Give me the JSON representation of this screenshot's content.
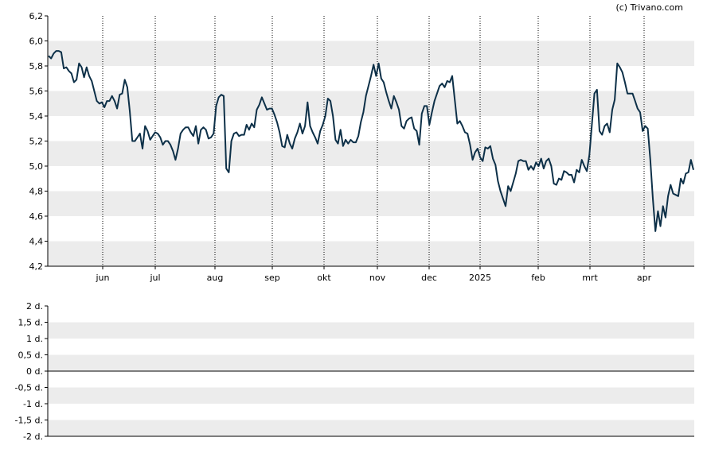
{
  "credit": "(c) Trivano.com",
  "colors": {
    "line": "#0d3048",
    "band": "#ececec",
    "axis": "#000000",
    "vgrid": "#000000"
  },
  "chart_data": [
    {
      "type": "line",
      "title": "",
      "xlabel": "",
      "ylabel": "",
      "ylim": [
        4.2,
        6.2
      ],
      "grid": "alternating horizontal bands, dotted vertical month lines",
      "x_tick_labels": [
        "jun",
        "jul",
        "aug",
        "sep",
        "okt",
        "nov",
        "dec",
        "2025",
        "feb",
        "mrt",
        "apr"
      ],
      "y_tick_labels": [
        "6,2",
        "6,0",
        "5,8",
        "5,6",
        "5,4",
        "5,2",
        "5,0",
        "4,8",
        "4,6",
        "4,4",
        "4,2"
      ],
      "y_ticks": [
        6.2,
        6.0,
        5.8,
        5.6,
        5.4,
        5.2,
        5.0,
        4.8,
        4.6,
        4.4,
        4.2
      ],
      "series": [
        {
          "values": [
            5.88,
            5.86,
            5.9,
            5.92,
            5.92,
            5.91,
            5.78,
            5.79,
            5.76,
            5.74,
            5.67,
            5.69,
            5.82,
            5.79,
            5.71,
            5.79,
            5.72,
            5.68,
            5.6,
            5.52,
            5.5,
            5.51,
            5.47,
            5.52,
            5.52,
            5.56,
            5.52,
            5.46,
            5.57,
            5.58,
            5.69,
            5.63,
            5.44,
            5.2,
            5.2,
            5.23,
            5.26,
            5.14,
            5.32,
            5.28,
            5.21,
            5.24,
            5.27,
            5.26,
            5.23,
            5.17,
            5.2,
            5.2,
            5.17,
            5.12,
            5.05,
            5.14,
            5.26,
            5.29,
            5.31,
            5.31,
            5.27,
            5.24,
            5.32,
            5.18,
            5.29,
            5.31,
            5.29,
            5.22,
            5.23,
            5.26,
            5.48,
            5.55,
            5.57,
            5.56,
            4.98,
            4.95,
            5.2,
            5.26,
            5.27,
            5.24,
            5.25,
            5.25,
            5.33,
            5.29,
            5.34,
            5.31,
            5.45,
            5.49,
            5.55,
            5.5,
            5.45,
            5.46,
            5.46,
            5.41,
            5.35,
            5.27,
            5.16,
            5.15,
            5.25,
            5.18,
            5.14,
            5.22,
            5.27,
            5.34,
            5.26,
            5.32,
            5.51,
            5.32,
            5.27,
            5.23,
            5.18,
            5.28,
            5.33,
            5.4,
            5.54,
            5.52,
            5.4,
            5.21,
            5.18,
            5.29,
            5.16,
            5.21,
            5.18,
            5.21,
            5.19,
            5.19,
            5.24,
            5.35,
            5.43,
            5.56,
            5.64,
            5.72,
            5.81,
            5.72,
            5.82,
            5.7,
            5.67,
            5.59,
            5.52,
            5.46,
            5.56,
            5.51,
            5.45,
            5.32,
            5.3,
            5.36,
            5.38,
            5.39,
            5.3,
            5.28,
            5.17,
            5.42,
            5.48,
            5.48,
            5.33,
            5.43,
            5.52,
            5.58,
            5.64,
            5.66,
            5.63,
            5.68,
            5.67,
            5.72,
            5.53,
            5.34,
            5.36,
            5.32,
            5.27,
            5.26,
            5.17,
            5.05,
            5.11,
            5.14,
            5.07,
            5.04,
            5.15,
            5.14,
            5.16,
            5.06,
            5.01,
            4.88,
            4.8,
            4.74,
            4.68,
            4.84,
            4.8,
            4.87,
            4.94,
            5.04,
            5.05,
            5.04,
            5.04,
            4.97,
            5.0,
            4.97,
            5.03,
            5.0,
            5.06,
            4.98,
            5.04,
            5.06,
            5.0,
            4.86,
            4.85,
            4.9,
            4.89,
            4.96,
            4.95,
            4.93,
            4.93,
            4.87,
            4.97,
            4.95,
            5.05,
            5.0,
            4.96,
            5.09,
            5.33,
            5.58,
            5.61,
            5.28,
            5.25,
            5.32,
            5.34,
            5.27,
            5.45,
            5.53,
            5.82,
            5.79,
            5.75,
            5.67,
            5.58,
            5.58,
            5.58,
            5.52,
            5.46,
            5.43,
            5.28,
            5.32,
            5.3,
            5.05,
            4.74,
            4.48,
            4.64,
            4.52,
            4.68,
            4.59,
            4.76,
            4.85,
            4.78,
            4.77,
            4.76,
            4.9,
            4.86,
            4.94,
            4.95,
            5.05,
            4.97
          ]
        }
      ]
    },
    {
      "type": "line",
      "title": "",
      "xlabel": "",
      "ylabel": "",
      "ylim": [
        -2,
        2
      ],
      "y_tick_labels": [
        "2 d.",
        "1,5 d.",
        "1 d.",
        "0,5 d.",
        "0 d.",
        "-0,5 d.",
        "-1 d.",
        "-1,5 d.",
        "-2 d."
      ],
      "y_ticks": [
        2,
        1.5,
        1,
        0.5,
        0,
        -0.5,
        -1,
        -1.5,
        -2
      ],
      "series": []
    }
  ]
}
